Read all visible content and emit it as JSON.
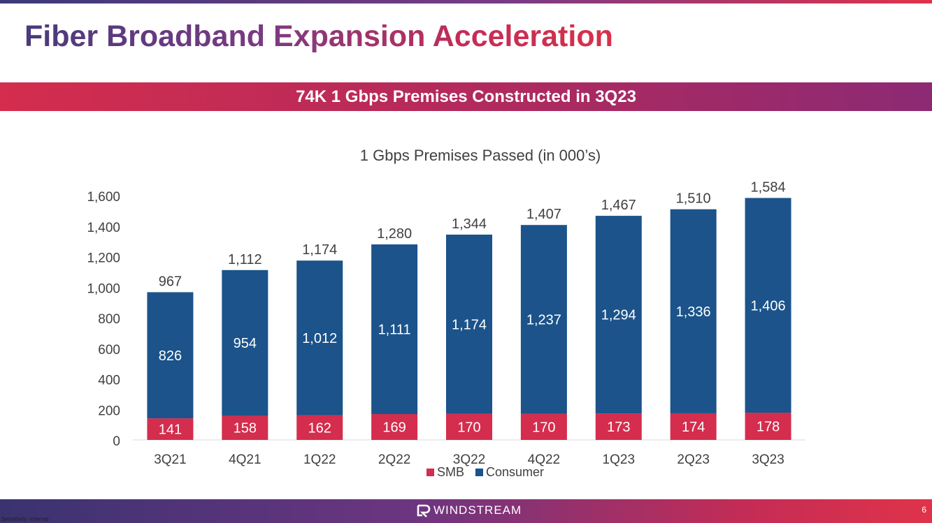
{
  "slide": {
    "title": "Fiber Broadband Expansion Acceleration",
    "banner": "74K 1 Gbps Premises Constructed in 3Q23",
    "sensitivity": "Sensitivity: Internal",
    "logo_text": "WINDSTREAM",
    "page_number": "6"
  },
  "colors": {
    "smb": "#d42d4d",
    "consumer": "#1b538a",
    "text": "#404040",
    "axis_line": "#d9d9d9"
  },
  "chart_data": {
    "type": "bar",
    "stacked": true,
    "title": "1 Gbps Premises Passed (in 000’s)",
    "categories": [
      "3Q21",
      "4Q21",
      "1Q22",
      "2Q22",
      "3Q22",
      "4Q22",
      "1Q23",
      "2Q23",
      "3Q23"
    ],
    "series": [
      {
        "name": "SMB",
        "values": [
          141,
          158,
          162,
          169,
          170,
          170,
          173,
          174,
          178
        ]
      },
      {
        "name": "Consumer",
        "values": [
          826,
          954,
          1012,
          1111,
          1174,
          1237,
          1294,
          1336,
          1406
        ]
      }
    ],
    "totals": [
      967,
      1112,
      1174,
      1280,
      1344,
      1407,
      1467,
      1510,
      1584
    ],
    "ylim": [
      0,
      1600
    ],
    "yticks": [
      0,
      200,
      400,
      600,
      800,
      1000,
      1200,
      1400,
      1600
    ],
    "legend": "bottom",
    "gridlines": false
  }
}
